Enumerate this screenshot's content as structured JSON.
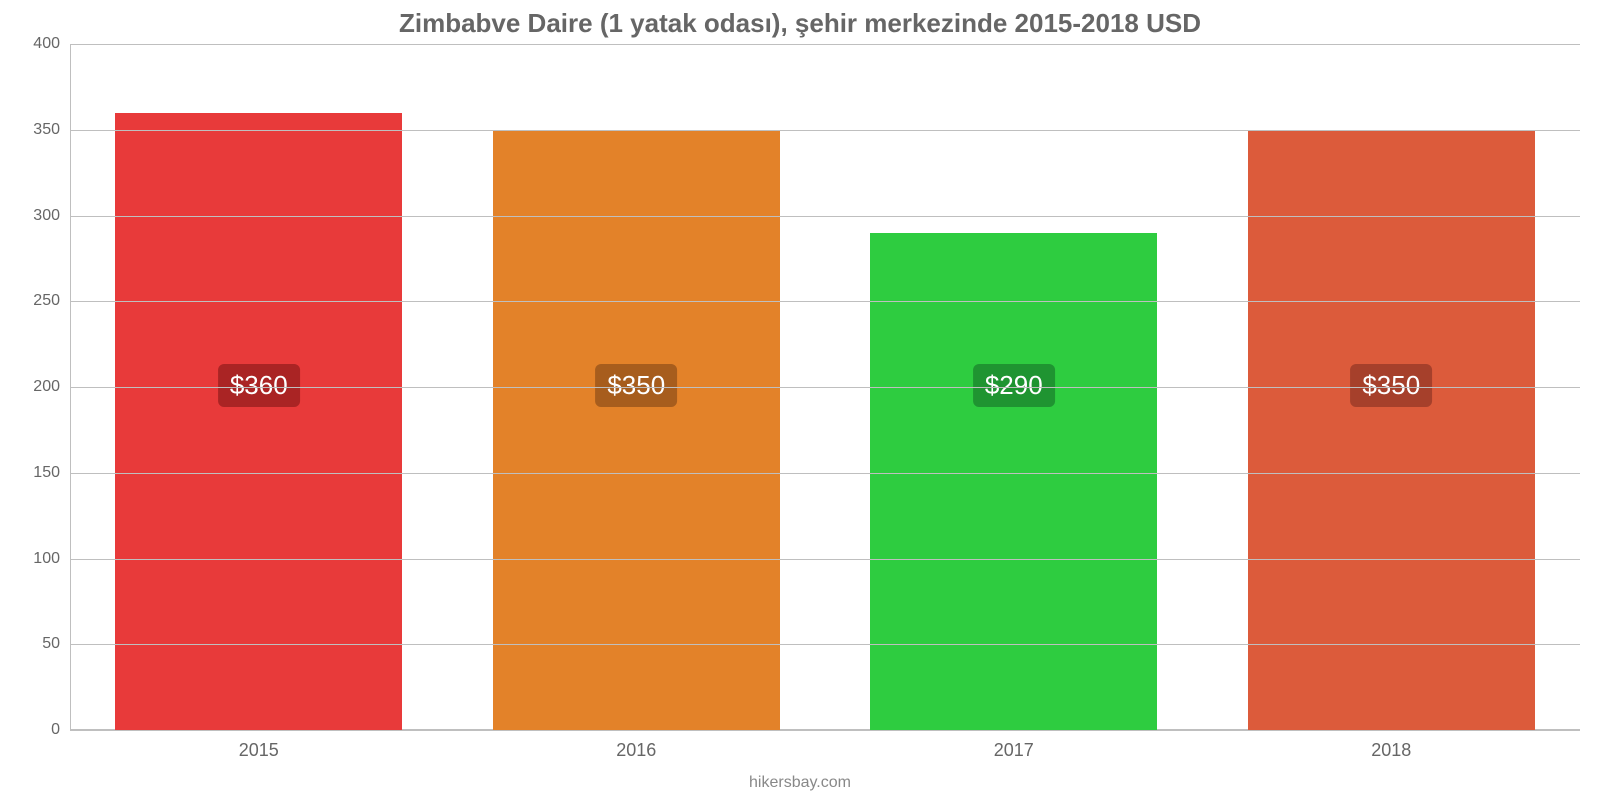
{
  "chart": {
    "type": "bar",
    "title": "Zimbabve Daire (1 yatak odası), şehir merkezinde 2015-2018 USD",
    "title_fontsize": 26,
    "title_color": "#666666",
    "title_weight": "700",
    "categories": [
      "2015",
      "2016",
      "2017",
      "2018"
    ],
    "values": [
      360,
      350,
      290,
      350
    ],
    "value_labels": [
      "$360",
      "$350",
      "$290",
      "$350"
    ],
    "bar_colors": [
      "#e83a3a",
      "#e38229",
      "#2ecc40",
      "#dc5b3b"
    ],
    "label_box_colors": [
      "#aa2424",
      "#a75d1d",
      "#1f9431",
      "#a6402b"
    ],
    "label_text_color": "#ffffff",
    "label_fontsize": 26,
    "ylim": [
      0,
      400
    ],
    "ytick_step": 50,
    "y_ticks": [
      0,
      50,
      100,
      150,
      200,
      250,
      300,
      350,
      400
    ],
    "grid_color": "#bfbfbf",
    "axis_color": "#bfbfbf",
    "tick_fontsize": 16,
    "tick_color": "#666666",
    "x_tick_fontsize": 18,
    "bar_width": 0.76,
    "background_color": "#ffffff",
    "footer": "hikersbay.com",
    "footer_fontsize": 16,
    "footer_color": "#888888",
    "value_label_vertical_center": 200
  }
}
